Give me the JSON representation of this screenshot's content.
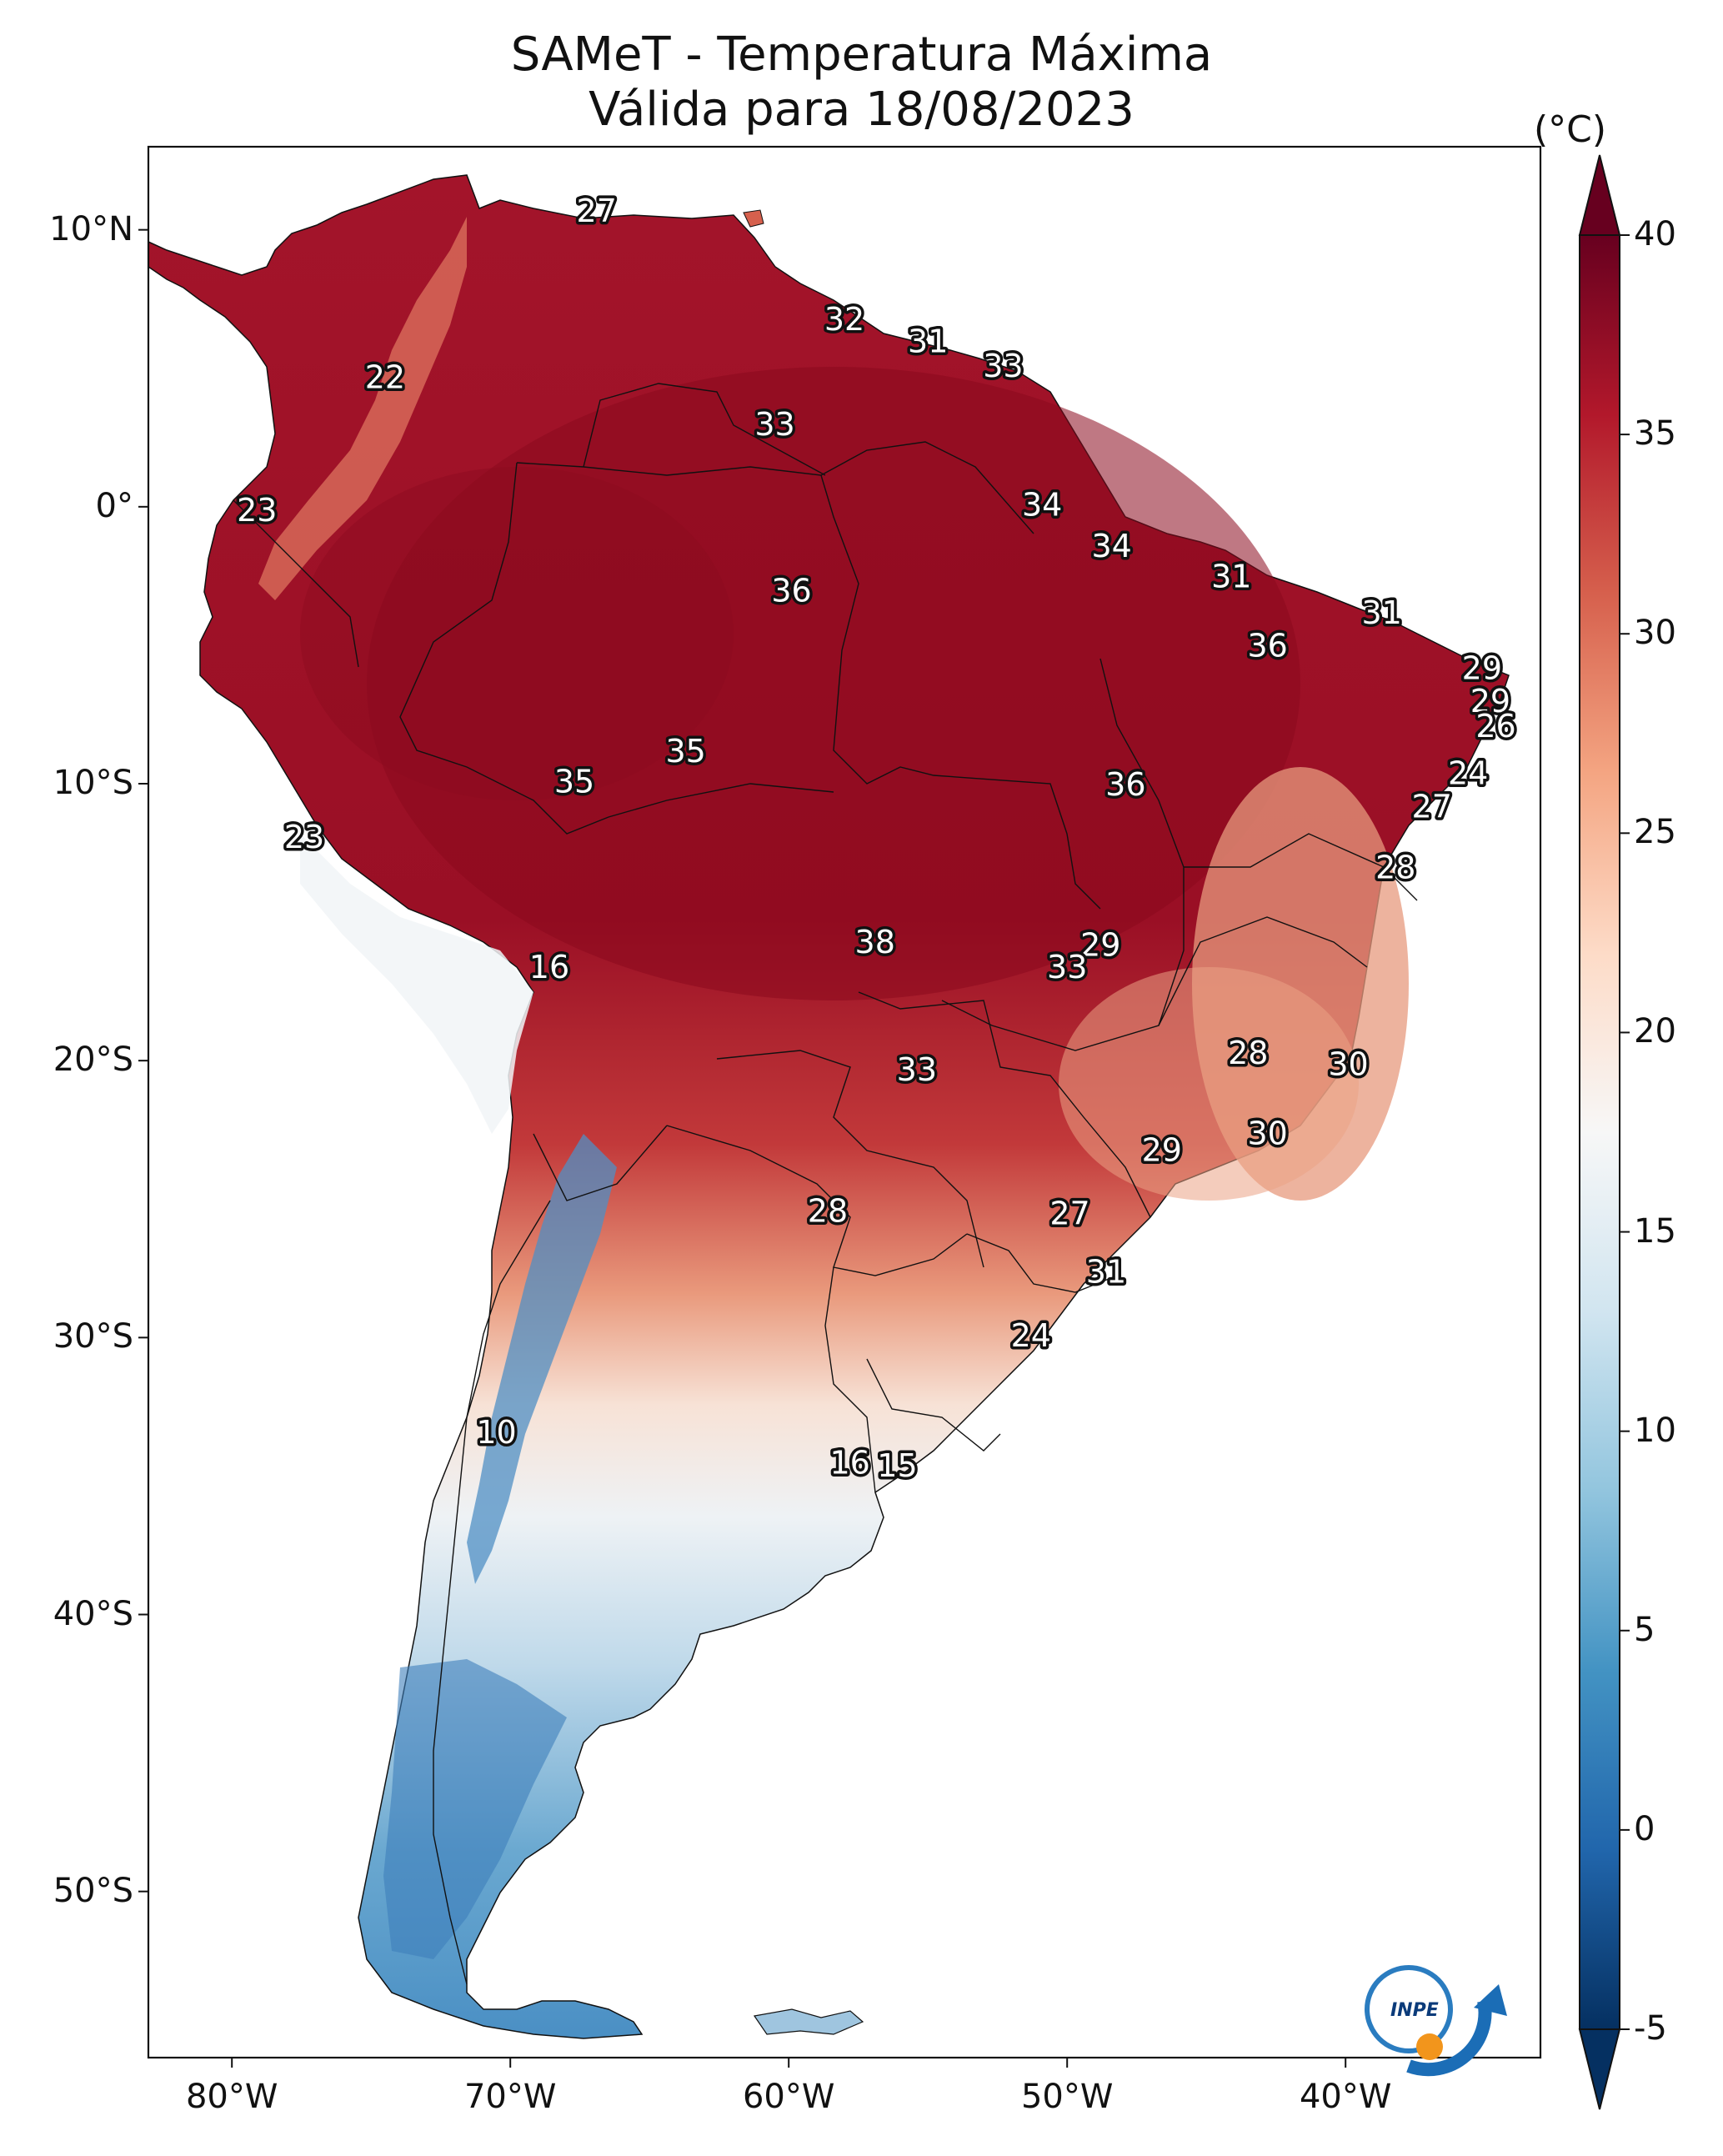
{
  "title": {
    "line1": "SAMeT - Temperatura Máxima",
    "line2": "Válida para 18/08/2023"
  },
  "map": {
    "lon_range": [
      -83,
      -33
    ],
    "lat_range": [
      -56,
      13
    ],
    "lat_ticks": [
      "10°N",
      "0°",
      "10°S",
      "20°S",
      "30°S",
      "40°S",
      "50°S"
    ],
    "lon_ticks": [
      "80°W",
      "70°W",
      "60°W",
      "50°W",
      "40°W"
    ],
    "lat_tick_values": [
      10,
      0,
      -10,
      -20,
      -30,
      -40,
      -50
    ],
    "lon_tick_values": [
      -80,
      -70,
      -60,
      -50,
      -40
    ],
    "labels": [
      {
        "v": "27",
        "lon": -66.9,
        "lat": 10.6
      },
      {
        "v": "32",
        "lon": -58.0,
        "lat": 6.7
      },
      {
        "v": "31",
        "lon": -55.0,
        "lat": 5.9
      },
      {
        "v": "33",
        "lon": -52.3,
        "lat": 5.0
      },
      {
        "v": "22",
        "lon": -74.5,
        "lat": 4.6
      },
      {
        "v": "33",
        "lon": -60.5,
        "lat": 2.9
      },
      {
        "v": "23",
        "lon": -79.1,
        "lat": -0.2
      },
      {
        "v": "34",
        "lon": -50.9,
        "lat": 0.0
      },
      {
        "v": "34",
        "lon": -48.4,
        "lat": -1.5
      },
      {
        "v": "31",
        "lon": -44.1,
        "lat": -2.6
      },
      {
        "v": "36",
        "lon": -59.9,
        "lat": -3.1
      },
      {
        "v": "31",
        "lon": -38.7,
        "lat": -3.9
      },
      {
        "v": "36",
        "lon": -42.8,
        "lat": -5.1
      },
      {
        "v": "29",
        "lon": -35.1,
        "lat": -5.9
      },
      {
        "v": "29",
        "lon": -34.8,
        "lat": -7.1
      },
      {
        "v": "26",
        "lon": -34.6,
        "lat": -8.0
      },
      {
        "v": "35",
        "lon": -63.7,
        "lat": -8.9
      },
      {
        "v": "24",
        "lon": -35.6,
        "lat": -9.7
      },
      {
        "v": "35",
        "lon": -67.7,
        "lat": -10.0
      },
      {
        "v": "36",
        "lon": -47.9,
        "lat": -10.1
      },
      {
        "v": "27",
        "lon": -36.9,
        "lat": -10.9
      },
      {
        "v": "23",
        "lon": -77.4,
        "lat": -12.0
      },
      {
        "v": "28",
        "lon": -38.2,
        "lat": -13.1
      },
      {
        "v": "38",
        "lon": -56.9,
        "lat": -15.8
      },
      {
        "v": "29",
        "lon": -48.8,
        "lat": -15.9
      },
      {
        "v": "16",
        "lon": -68.6,
        "lat": -16.7
      },
      {
        "v": "33",
        "lon": -50.0,
        "lat": -16.7
      },
      {
        "v": "28",
        "lon": -43.5,
        "lat": -19.8
      },
      {
        "v": "30",
        "lon": -39.9,
        "lat": -20.2
      },
      {
        "v": "33",
        "lon": -55.4,
        "lat": -20.4
      },
      {
        "v": "30",
        "lon": -42.8,
        "lat": -22.7
      },
      {
        "v": "29",
        "lon": -46.6,
        "lat": -23.3
      },
      {
        "v": "28",
        "lon": -58.6,
        "lat": -25.5
      },
      {
        "v": "27",
        "lon": -49.9,
        "lat": -25.6
      },
      {
        "v": "31",
        "lon": -48.6,
        "lat": -27.7
      },
      {
        "v": "24",
        "lon": -51.3,
        "lat": -30.0
      },
      {
        "v": "10",
        "lon": -70.5,
        "lat": -33.5
      },
      {
        "v": "16",
        "lon": -57.8,
        "lat": -34.6
      },
      {
        "v": "15",
        "lon": -56.1,
        "lat": -34.7
      }
    ]
  },
  "colorbar": {
    "unit": "(°C)",
    "min": -5,
    "max": 40,
    "ticks": [
      "40",
      "35",
      "30",
      "25",
      "20",
      "15",
      "10",
      "5",
      "0",
      "-5"
    ],
    "tick_values": [
      40,
      35,
      30,
      25,
      20,
      15,
      10,
      5,
      0,
      -5
    ],
    "colormap": "RdBu_r",
    "colors": [
      "#053061",
      "#2166ac",
      "#4393c3",
      "#92c5de",
      "#d1e5f0",
      "#f7f7f7",
      "#fddbc7",
      "#f4a582",
      "#d6604d",
      "#b2182b",
      "#67001f"
    ]
  },
  "logo": {
    "text": "INPE"
  }
}
